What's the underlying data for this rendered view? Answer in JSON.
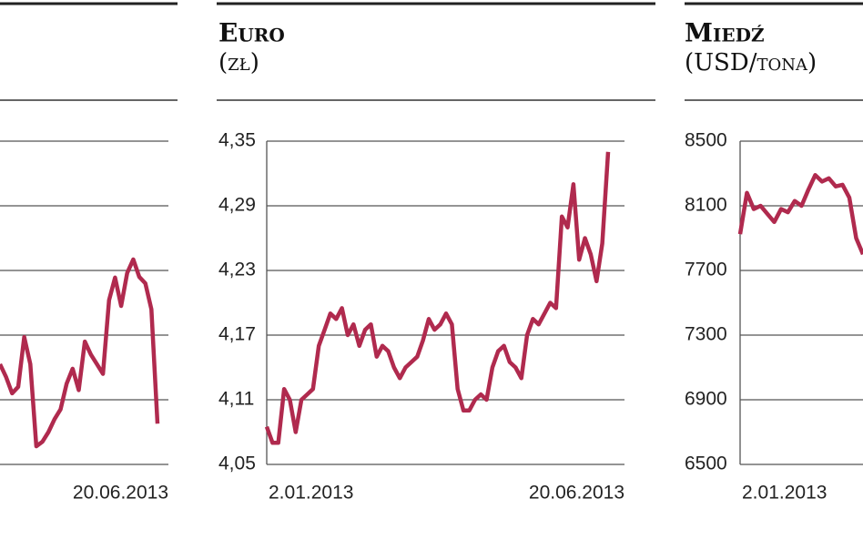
{
  "chart_data": [
    {
      "type": "line",
      "color": "#b02a4e",
      "categories": [
        null,
        null,
        null,
        null,
        null,
        null,
        null,
        null,
        null,
        null,
        null,
        null,
        null,
        null,
        null,
        null,
        null,
        null,
        null,
        null,
        null,
        null,
        null,
        null,
        null,
        null,
        "20.06.2013"
      ],
      "values": [
        1.55,
        1.35,
        1.1,
        1.2,
        1.97,
        1.55,
        0.28,
        0.35,
        0.5,
        0.7,
        0.85,
        1.25,
        1.48,
        1.15,
        1.9,
        1.7,
        1.55,
        1.4,
        2.54,
        2.89,
        2.45,
        2.96,
        3.17,
        2.9,
        2.8,
        2.4,
        0.63
      ],
      "ylim": [
        0,
        5
      ],
      "grid": true
    },
    {
      "type": "line",
      "title": "Euro",
      "subtitle": "(zł)",
      "color": "#b02a4e",
      "categories": [
        "2.01.2013",
        null,
        null,
        null,
        null,
        null,
        null,
        null,
        null,
        null,
        null,
        null,
        null,
        null,
        null,
        null,
        null,
        null,
        null,
        null,
        null,
        null,
        null,
        null,
        null,
        null,
        null,
        null,
        null,
        null,
        null,
        null,
        null,
        null,
        null,
        null,
        null,
        null,
        null,
        null,
        null,
        null,
        null,
        null,
        null,
        null,
        null,
        null,
        null,
        null,
        null,
        null,
        null,
        null,
        null,
        null,
        null,
        null,
        null,
        "20.06.2013"
      ],
      "values": [
        4.085,
        4.07,
        4.07,
        4.12,
        4.11,
        4.08,
        4.11,
        4.115,
        4.12,
        4.16,
        4.175,
        4.19,
        4.185,
        4.195,
        4.17,
        4.18,
        4.16,
        4.175,
        4.18,
        4.15,
        4.16,
        4.155,
        4.14,
        4.13,
        4.14,
        4.145,
        4.15,
        4.165,
        4.185,
        4.175,
        4.18,
        4.19,
        4.18,
        4.12,
        4.1,
        4.1,
        4.11,
        4.115,
        4.11,
        4.14,
        4.155,
        4.16,
        4.145,
        4.14,
        4.13,
        4.17,
        4.185,
        4.18,
        4.19,
        4.2,
        4.195,
        4.28,
        4.27,
        4.31,
        4.24,
        4.26,
        4.245,
        4.22,
        4.255,
        4.34
      ],
      "ylim": [
        4.05,
        4.35
      ],
      "yticks": [
        {
          "value": 4.05,
          "label": "4,05"
        },
        {
          "value": 4.11,
          "label": "4,11"
        },
        {
          "value": 4.17,
          "label": "4,17"
        },
        {
          "value": 4.23,
          "label": "4,23"
        },
        {
          "value": 4.29,
          "label": "4,29"
        },
        {
          "value": 4.35,
          "label": "4,35"
        }
      ],
      "grid": true
    },
    {
      "type": "line",
      "title": "Miedź",
      "subtitle": "(USD/tona)",
      "color": "#b02a4e",
      "categories": [
        "2.01.2013",
        null,
        null,
        null,
        null,
        null,
        null,
        null,
        null,
        null,
        null,
        null,
        null,
        null,
        null,
        null,
        null,
        null,
        null
      ],
      "values": [
        7925,
        8180,
        8080,
        8100,
        8050,
        8000,
        8080,
        8060,
        8130,
        8100,
        8200,
        8290,
        8250,
        8270,
        8220,
        8230,
        8150,
        7900,
        7800
      ],
      "ylim": [
        6500,
        8500
      ],
      "yticks": [
        6500,
        6900,
        7300,
        7700,
        8100,
        8500
      ],
      "grid": true
    }
  ]
}
